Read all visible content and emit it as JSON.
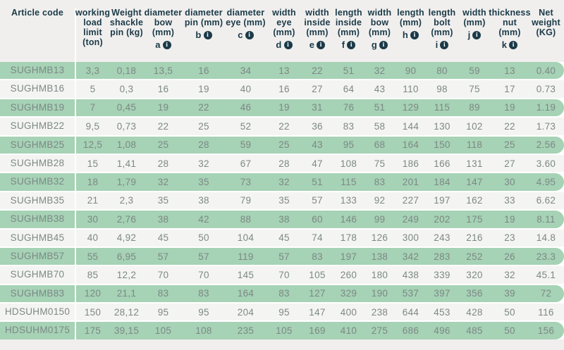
{
  "colors": {
    "row_green": "#a6d2b5",
    "row_gray": "#f4f4f2",
    "header_text": "#1b3a48",
    "cell_text": "#7c8886",
    "info_icon_bg": "#1b3a48",
    "info_icon_glyph_color": "#ffffff",
    "page_background": "#f0efee"
  },
  "table": {
    "info_icon_glyph": "i",
    "columns": [
      {
        "id": "article-code",
        "lines": [
          "Article code"
        ],
        "letter": null
      },
      {
        "id": "working-load-limit",
        "lines": [
          "working",
          "load",
          "limit",
          "(ton)"
        ],
        "letter": null
      },
      {
        "id": "weight-shackle-pin",
        "lines": [
          "Weight",
          "shackle",
          "pin (kg)"
        ],
        "letter": null
      },
      {
        "id": "diameter-bow",
        "lines": [
          "diameter",
          "bow",
          "(mm)"
        ],
        "letter": "a"
      },
      {
        "id": "diameter-pin",
        "lines": [
          "diameter",
          "pin (mm)"
        ],
        "letter": "b"
      },
      {
        "id": "diameter-eye",
        "lines": [
          "diameter",
          "eye (mm)"
        ],
        "letter": "c"
      },
      {
        "id": "width-eye",
        "lines": [
          "width",
          "eye",
          "(mm)"
        ],
        "letter": "d"
      },
      {
        "id": "width-inside",
        "lines": [
          "width",
          "inside",
          "(mm)"
        ],
        "letter": "e"
      },
      {
        "id": "length-inside",
        "lines": [
          "length",
          "inside",
          "(mm)"
        ],
        "letter": "f"
      },
      {
        "id": "width-bow",
        "lines": [
          "width",
          "bow",
          "(mm)"
        ],
        "letter": "g"
      },
      {
        "id": "length",
        "lines": [
          "length",
          "(mm)"
        ],
        "letter": "h"
      },
      {
        "id": "length-bolt",
        "lines": [
          "length",
          "bolt",
          "(mm)"
        ],
        "letter": "i"
      },
      {
        "id": "width",
        "lines": [
          "width",
          "(mm)"
        ],
        "letter": "j"
      },
      {
        "id": "thickness-nut",
        "lines": [
          "thickness",
          "nut (mm)"
        ],
        "letter": "k"
      },
      {
        "id": "net-weight",
        "lines": [
          "Net",
          "weight",
          "(KG)"
        ],
        "letter": null
      }
    ],
    "rows": [
      [
        "SUGHMB13",
        "3,3",
        "0,18",
        "13,5",
        "16",
        "34",
        "13",
        "22",
        "51",
        "32",
        "90",
        "80",
        "59",
        "13",
        "0.40"
      ],
      [
        "SUGHMB16",
        "5",
        "0,3",
        "16",
        "19",
        "40",
        "16",
        "27",
        "64",
        "43",
        "110",
        "98",
        "75",
        "17",
        "0.73"
      ],
      [
        "SUGHMB19",
        "7",
        "0,45",
        "19",
        "22",
        "46",
        "19",
        "31",
        "76",
        "51",
        "129",
        "115",
        "89",
        "19",
        "1.19"
      ],
      [
        "SUGHMB22",
        "9,5",
        "0,73",
        "22",
        "25",
        "52",
        "22",
        "36",
        "83",
        "58",
        "144",
        "130",
        "102",
        "22",
        "1.73"
      ],
      [
        "SUGHMB25",
        "12,5",
        "1,08",
        "25",
        "28",
        "59",
        "25",
        "43",
        "95",
        "68",
        "164",
        "150",
        "118",
        "25",
        "2.56"
      ],
      [
        "SUGHMB28",
        "15",
        "1,41",
        "28",
        "32",
        "67",
        "28",
        "47",
        "108",
        "75",
        "186",
        "166",
        "131",
        "27",
        "3.60"
      ],
      [
        "SUGHMB32",
        "18",
        "1,79",
        "32",
        "35",
        "73",
        "32",
        "51",
        "115",
        "83",
        "201",
        "184",
        "147",
        "30",
        "4.95"
      ],
      [
        "SUGHMB35",
        "21",
        "2,3",
        "35",
        "38",
        "79",
        "35",
        "57",
        "133",
        "92",
        "227",
        "197",
        "162",
        "33",
        "6.62"
      ],
      [
        "SUGHMB38",
        "30",
        "2,76",
        "38",
        "42",
        "88",
        "38",
        "60",
        "146",
        "99",
        "249",
        "202",
        "175",
        "19",
        "8.11"
      ],
      [
        "SUGHMB45",
        "40",
        "4,92",
        "45",
        "50",
        "104",
        "45",
        "74",
        "178",
        "126",
        "300",
        "243",
        "216",
        "23",
        "14.8"
      ],
      [
        "SUGHMB57",
        "55",
        "6,95",
        "57",
        "57",
        "119",
        "57",
        "83",
        "197",
        "138",
        "342",
        "283",
        "252",
        "26",
        "23.3"
      ],
      [
        "SUGHMB70",
        "85",
        "12,2",
        "70",
        "70",
        "145",
        "70",
        "105",
        "260",
        "180",
        "438",
        "339",
        "320",
        "32",
        "45.1"
      ],
      [
        "SUGHMB83",
        "120",
        "21,1",
        "83",
        "83",
        "164",
        "83",
        "127",
        "329",
        "190",
        "537",
        "397",
        "356",
        "39",
        "72"
      ],
      [
        "HDSUHM0150",
        "150",
        "28,12",
        "95",
        "95",
        "204",
        "95",
        "147",
        "400",
        "238",
        "644",
        "453",
        "428",
        "50",
        "116"
      ],
      [
        "HDSUHM0175",
        "175",
        "39,15",
        "105",
        "108",
        "235",
        "105",
        "169",
        "410",
        "275",
        "686",
        "496",
        "485",
        "50",
        "156"
      ]
    ]
  }
}
